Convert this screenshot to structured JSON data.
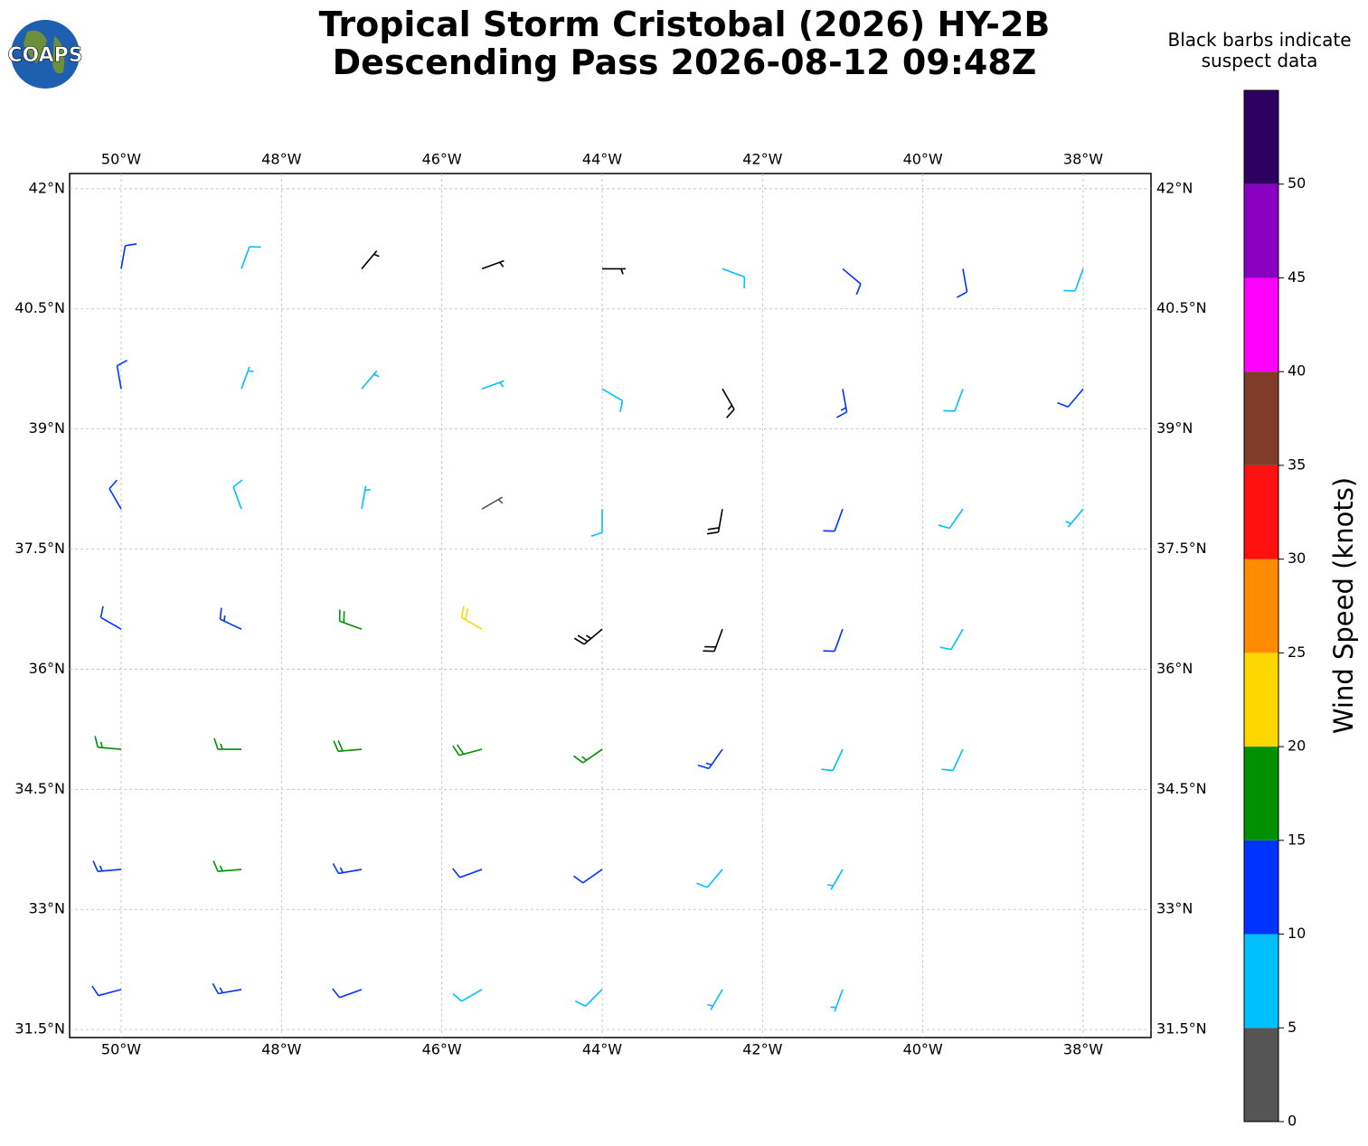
{
  "chart_data": {
    "type": "barb",
    "logo": "COAPS",
    "title": [
      "Tropical Storm Cristobal (2026) HY-2B",
      "Descending Pass 2026-08-12 09:48Z"
    ],
    "note": [
      "Black barbs indicate",
      "suspect data"
    ],
    "xlim": [
      -50.643,
      -37.154
    ],
    "ylim": [
      31.4,
      42.19
    ],
    "xticks": [
      {
        "value": -50,
        "label": "50°W"
      },
      {
        "value": -48,
        "label": "48°W"
      },
      {
        "value": -46,
        "label": "46°W"
      },
      {
        "value": -44,
        "label": "44°W"
      },
      {
        "value": -42,
        "label": "42°W"
      },
      {
        "value": -40,
        "label": "40°W"
      },
      {
        "value": -38,
        "label": "38°W"
      }
    ],
    "yticks": [
      {
        "value": 42,
        "label": "42°N"
      },
      {
        "value": 40.5,
        "label": "40.5°N"
      },
      {
        "value": 39,
        "label": "39°N"
      },
      {
        "value": 37.5,
        "label": "37.5°N"
      },
      {
        "value": 36,
        "label": "36°N"
      },
      {
        "value": 34.5,
        "label": "34.5°N"
      },
      {
        "value": 33,
        "label": "33°N"
      },
      {
        "value": 31.5,
        "label": "31.5°N"
      }
    ],
    "grid": true,
    "suspect_color": "#000000",
    "colorbar": {
      "label": "Wind Speed (knots)",
      "lim": [
        0,
        55
      ],
      "bounds": [
        0,
        5,
        10,
        15,
        20,
        25,
        30,
        35,
        40,
        45,
        50,
        55
      ],
      "colors": [
        "#555555",
        "#00bfff",
        "#0033ff",
        "#009000",
        "#ffd700",
        "#ff8c00",
        "#ff1010",
        "#803c28",
        "#ff00ff",
        "#8a00c0",
        "#2c0060"
      ],
      "ticks": [
        0,
        5,
        10,
        15,
        20,
        25,
        30,
        35,
        40,
        45,
        50
      ]
    },
    "barbs": {
      "lon": [
        -50,
        -48.5,
        -47,
        -45.5,
        -44,
        -42.5,
        -41,
        -50,
        -48.5,
        -47,
        -45.5,
        -44,
        -42.5,
        -41,
        -50,
        -48.5,
        -47,
        -45.5,
        -44,
        -42.5,
        -41,
        -39.5,
        -50,
        -48.5,
        -47,
        -45.5,
        -44,
        -42.5,
        -41,
        -39.5,
        -50,
        -48.5,
        -47,
        -45.5,
        -44,
        -42.5,
        -41,
        -39.5,
        -38,
        -50,
        -48.5,
        -47,
        -45.5,
        -44,
        -42.5,
        -41,
        -39.5,
        -38,
        -50,
        -48.5,
        -47,
        -45.5,
        -44,
        -42.5,
        -41,
        -39.5,
        -38
      ],
      "lat": [
        32,
        32,
        32,
        32,
        32,
        32,
        32,
        33.5,
        33.5,
        33.5,
        33.5,
        33.5,
        33.5,
        33.5,
        35,
        35,
        35,
        35,
        35,
        35,
        35,
        35,
        36.5,
        36.5,
        36.5,
        36.5,
        36.5,
        36.5,
        36.5,
        36.5,
        38,
        38,
        38,
        38,
        38,
        38,
        38,
        38,
        38,
        39.5,
        39.5,
        39.5,
        39.5,
        39.5,
        39.5,
        39.5,
        39.5,
        39.5,
        41,
        41,
        41,
        41,
        41,
        41,
        41,
        41,
        41
      ],
      "speed": [
        12,
        13,
        11,
        8,
        8,
        7,
        6,
        13,
        15,
        14,
        12,
        10,
        8,
        7,
        16,
        17,
        19,
        18,
        17,
        13,
        9,
        8,
        12,
        14,
        18,
        20,
        24,
        22,
        12,
        8,
        10,
        8,
        6,
        4,
        9,
        18,
        12,
        8,
        6,
        10,
        7,
        6,
        5,
        8,
        14,
        13,
        9,
        11,
        12,
        8,
        6,
        4,
        3,
        8,
        12,
        12,
        9
      ],
      "direction": [
        255,
        260,
        250,
        240,
        225,
        210,
        200,
        265,
        265,
        260,
        250,
        235,
        220,
        210,
        275,
        270,
        265,
        255,
        235,
        215,
        205,
        205,
        300,
        295,
        290,
        300,
        230,
        200,
        200,
        210,
        330,
        340,
        10,
        60,
        180,
        190,
        200,
        215,
        220,
        350,
        20,
        40,
        70,
        120,
        150,
        170,
        200,
        220,
        10,
        20,
        40,
        70,
        90,
        110,
        130,
        170,
        200
      ],
      "suspect": [
        false,
        false,
        false,
        false,
        false,
        false,
        false,
        false,
        false,
        false,
        false,
        false,
        false,
        false,
        false,
        false,
        false,
        false,
        false,
        false,
        false,
        false,
        false,
        false,
        false,
        false,
        true,
        true,
        false,
        false,
        false,
        false,
        false,
        false,
        false,
        true,
        false,
        false,
        false,
        false,
        false,
        false,
        false,
        false,
        true,
        false,
        false,
        false,
        false,
        false,
        true,
        true,
        true,
        false,
        false,
        false,
        false
      ]
    }
  }
}
